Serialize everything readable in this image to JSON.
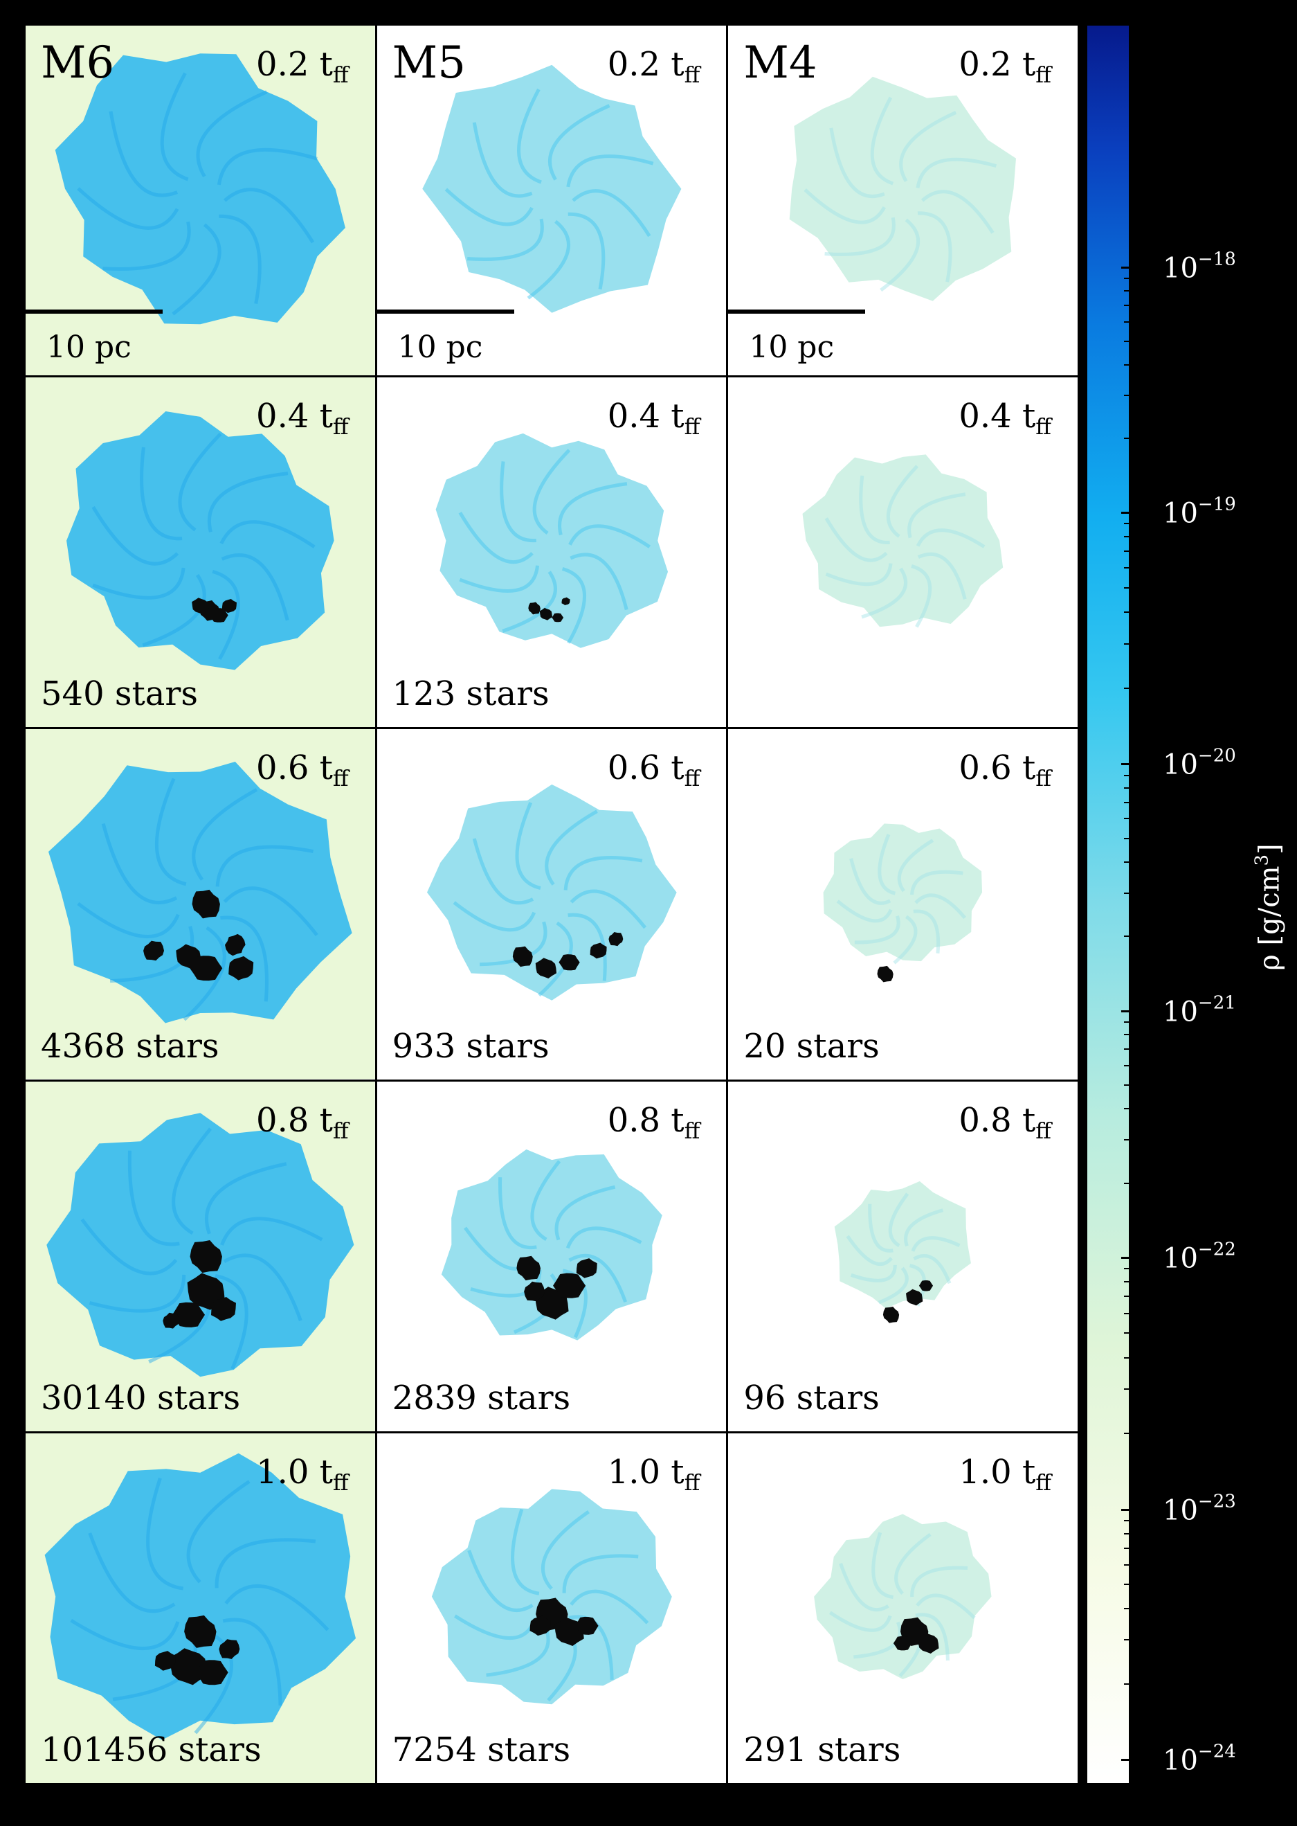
{
  "columns": [
    {
      "model": "M6",
      "scale_label": "10 pc"
    },
    {
      "model": "M5",
      "scale_label": "10 pc"
    },
    {
      "model": "M4",
      "scale_label": "10 pc"
    }
  ],
  "rows": [
    {
      "time": "0.2",
      "stars": [
        "",
        "",
        ""
      ]
    },
    {
      "time": "0.4",
      "stars": [
        "540 stars",
        "123 stars",
        ""
      ]
    },
    {
      "time": "0.6",
      "stars": [
        "4368 stars",
        "933 stars",
        "20 stars"
      ]
    },
    {
      "time": "0.8",
      "stars": [
        "30140 stars",
        "2839 stars",
        "96 stars"
      ]
    },
    {
      "time": "1.0",
      "stars": [
        "101456 stars",
        "7254 stars",
        "291 stars"
      ]
    }
  ],
  "time_unit": "t",
  "time_unit_sub": "ff",
  "colorbar": {
    "title": "ρ [g/cm",
    "title_sup": "3",
    "title_end": "]",
    "ticks": [
      {
        "base": "10",
        "exp": "−18",
        "frac": 0.138
      },
      {
        "base": "10",
        "exp": "−19",
        "frac": 0.277
      },
      {
        "base": "10",
        "exp": "−20",
        "frac": 0.42
      },
      {
        "base": "10",
        "exp": "−21",
        "frac": 0.56
      },
      {
        "base": "10",
        "exp": "−22",
        "frac": 0.7
      },
      {
        "base": "10",
        "exp": "−23",
        "frac": 0.843
      },
      {
        "base": "10",
        "exp": "−24",
        "frac": 0.985
      }
    ],
    "colors": {
      "low": "#ffffff",
      "mid_low": "#dff5d8",
      "mid": "#7fdbe9",
      "mid_high": "#12aef0",
      "high": "#061a8c"
    }
  },
  "colors": {
    "frame": "#000000",
    "gas_dense": "#29b6f0",
    "gas_medium": "#7fd8ea",
    "gas_light": "#c8efe0",
    "gas_faint": "#eaf8d8",
    "stars": "#0b0b0b"
  }
}
